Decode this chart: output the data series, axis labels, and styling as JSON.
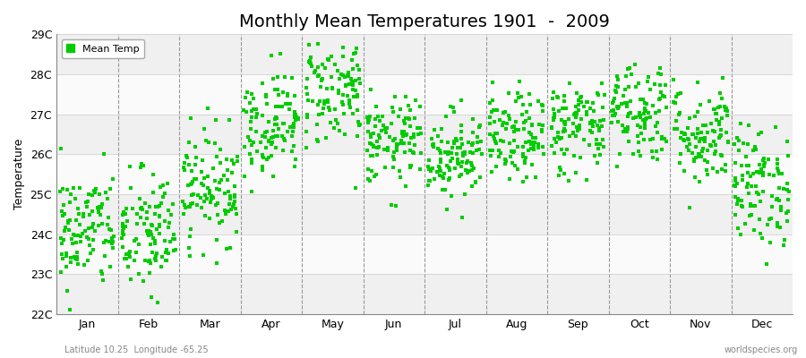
{
  "title": "Monthly Mean Temperatures 1901  -  2009",
  "ylabel": "Temperature",
  "xlabel_bottom": "Latitude 10.25  Longitude -65.25",
  "watermark": "worldspecies.org",
  "ytick_labels": [
    "22C",
    "23C",
    "24C",
    "25C",
    "26C",
    "27C",
    "28C",
    "29C"
  ],
  "ytick_values": [
    22,
    23,
    24,
    25,
    26,
    27,
    28,
    29
  ],
  "ylim": [
    22,
    29
  ],
  "months": [
    "Jan",
    "Feb",
    "Mar",
    "Apr",
    "May",
    "Jun",
    "Jul",
    "Aug",
    "Sep",
    "Oct",
    "Nov",
    "Dec"
  ],
  "month_centers": [
    0.5,
    1.5,
    2.5,
    3.5,
    4.5,
    5.5,
    6.5,
    7.5,
    8.5,
    9.5,
    10.5,
    11.5
  ],
  "month_means": [
    24.1,
    24.0,
    25.2,
    26.8,
    27.6,
    26.3,
    26.0,
    26.4,
    26.7,
    27.1,
    26.5,
    25.2
  ],
  "month_stds": [
    0.75,
    0.8,
    0.7,
    0.65,
    0.7,
    0.55,
    0.55,
    0.55,
    0.6,
    0.65,
    0.65,
    0.75
  ],
  "n_years": 109,
  "marker_color": "#00CC00",
  "marker_size": 2.5,
  "background_color": "#FFFFFF",
  "band_colors": [
    "#F0F0F0",
    "#FAFAFA"
  ],
  "grid_line_color": "#CCCCCC",
  "dashed_line_color": "#999999",
  "title_fontsize": 14,
  "axis_fontsize": 9,
  "tick_fontsize": 9,
  "legend_label": "Mean Temp",
  "legend_fontsize": 8,
  "seed": 42
}
